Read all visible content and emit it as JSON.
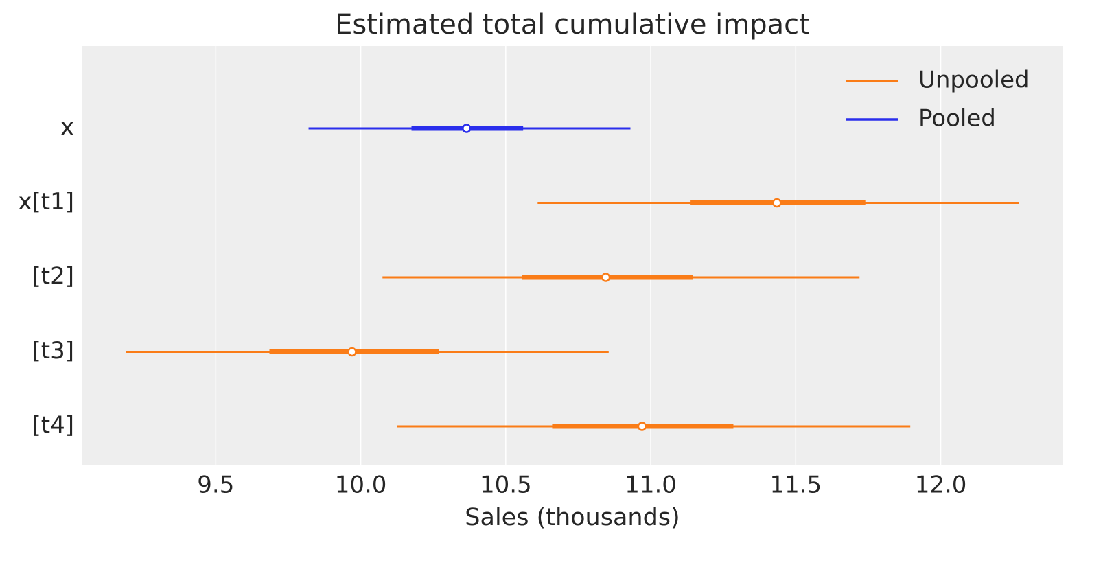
{
  "chart_data": {
    "type": "forest",
    "title": "Estimated total cumulative impact",
    "x_label": "Sales (thousands)",
    "categories": [
      "x",
      "x[t1]",
      "[t2]",
      "[t3]",
      "[t4]"
    ],
    "series": [
      {
        "name": "Unpooled",
        "color": "#fa7c17",
        "values": [
          null,
          11.435,
          10.845,
          9.97,
          10.97
        ],
        "hdi_low": [
          null,
          10.61,
          10.075,
          9.19,
          10.125
        ],
        "hdi_high": [
          null,
          12.27,
          11.72,
          10.855,
          11.895
        ],
        "iqr_low": [
          null,
          11.135,
          10.555,
          9.685,
          10.66
        ],
        "iqr_high": [
          null,
          11.74,
          11.145,
          10.27,
          11.285
        ]
      },
      {
        "name": "Pooled",
        "color": "#2a2eec",
        "values": [
          10.365,
          null,
          null,
          null,
          null
        ],
        "hdi_low": [
          9.82,
          null,
          null,
          null,
          null
        ],
        "hdi_high": [
          10.93,
          null,
          null,
          null,
          null
        ],
        "iqr_low": [
          10.175,
          null,
          null,
          null,
          null
        ],
        "iqr_high": [
          10.56,
          null,
          null,
          null,
          null
        ]
      }
    ],
    "xlim": [
      9.04,
      12.42
    ],
    "xticks": [
      9.5,
      {
        "value": 10,
        "label": "10.0"
      },
      10.5,
      {
        "value": 11,
        "label": "11.0"
      },
      11.5,
      {
        "value": 12,
        "label": "12.0"
      }
    ],
    "grid": true,
    "legend": "upper right"
  }
}
